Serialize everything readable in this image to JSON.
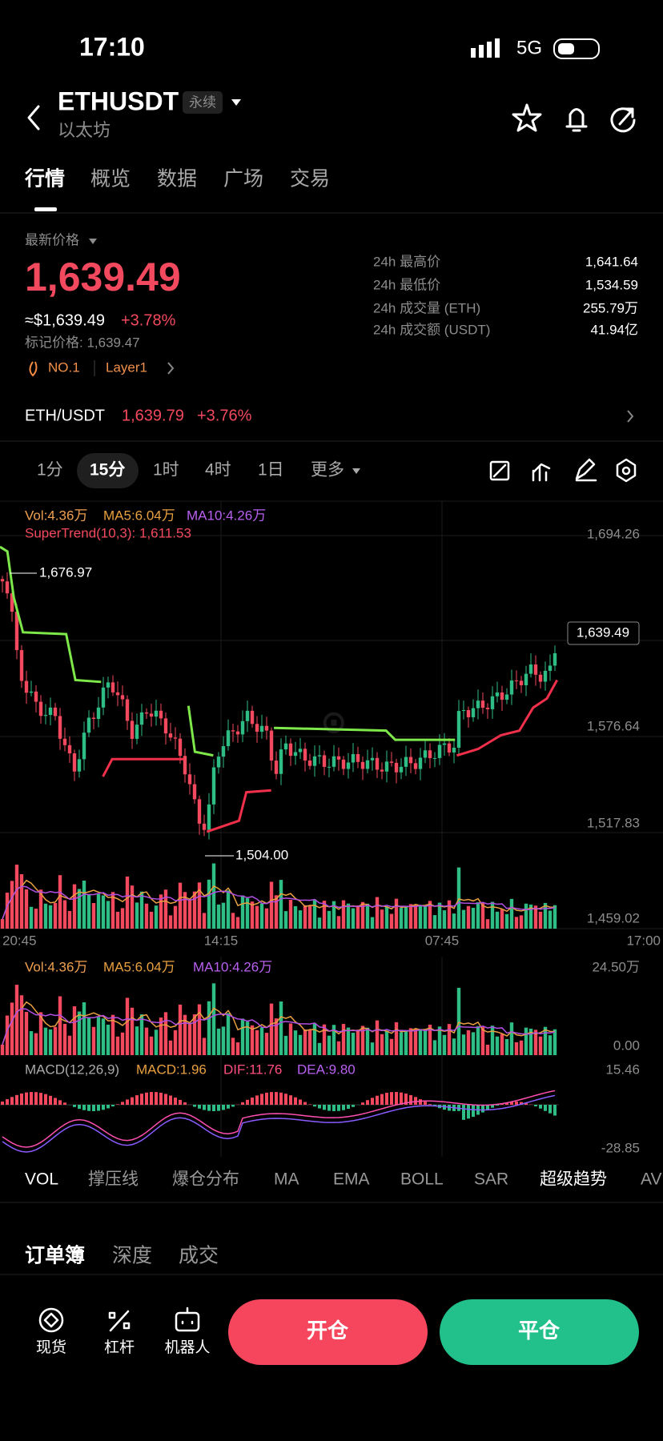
{
  "status": {
    "time": "17:10",
    "network": "5G"
  },
  "header": {
    "symbol": "ETHUSDT",
    "badge": "永续",
    "subtitle": "以太坊"
  },
  "tabs": [
    "行情",
    "概览",
    "数据",
    "广场",
    "交易"
  ],
  "price": {
    "label": "最新价格",
    "last": "1,639.49",
    "usd": "≈$1,639.49",
    "change": "+3.78%",
    "mark": "标记价格: 1,639.47",
    "rank": "NO.1",
    "tag": "Layer1"
  },
  "stats": [
    [
      "24h 最高价",
      "1,641.64"
    ],
    [
      "24h 最低价",
      "1,534.59"
    ],
    [
      "24h 成交量 (ETH)",
      "255.79万"
    ],
    [
      "24h 成交额 (USDT)",
      "41.94亿"
    ]
  ],
  "pair": {
    "name": "ETH/USDT",
    "price": "1,639.79",
    "change": "+3.76%"
  },
  "intervals": [
    "1分",
    "15分",
    "1时",
    "4时",
    "1日",
    "更多"
  ],
  "chart": {
    "vol": "Vol:4.36万",
    "ma5": "MA5:6.04万",
    "ma10": "MA10:4.26万",
    "supertrend": "SuperTrend(10,3): 1,611.53",
    "yticks": [
      "1,694.26",
      "1,576.64",
      "1,517.83",
      "1,459.02"
    ],
    "current": "1,639.49",
    "high": "1,676.97",
    "low": "1,504.00",
    "xticks": [
      "20:45",
      "14:15",
      "07:45",
      "17:00"
    ]
  },
  "volume": {
    "vol": "Vol:4.36万",
    "ma5": "MA5:6.04万",
    "ma10": "MA10:4.26万",
    "yticks": [
      "24.50万",
      "0.00"
    ]
  },
  "macd": {
    "name": "MACD(12,26,9)",
    "macd": "MACD:1.96",
    "dif": "DIF:11.76",
    "dea": "DEA:9.80",
    "yticks": [
      "15.46",
      "-28.85"
    ]
  },
  "indicators": [
    "VOL",
    "撑压线",
    "爆仓分布",
    "MA",
    "EMA",
    "BOLL",
    "SAR",
    "超级趋势",
    "AV"
  ],
  "book_tabs": [
    "订单簿",
    "深度",
    "成交"
  ],
  "nav": [
    "现货",
    "杠杆",
    "机器人"
  ],
  "buttons": [
    "开仓",
    "平仓"
  ]
}
